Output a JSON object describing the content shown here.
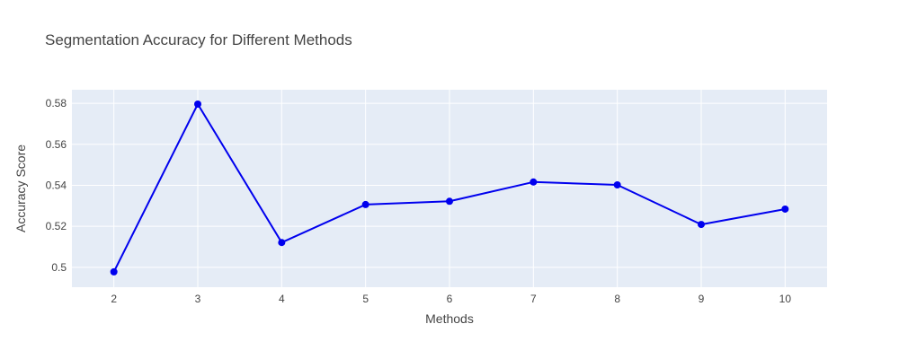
{
  "chart_data": {
    "type": "line",
    "title": "Segmentation Accuracy for Different Methods",
    "xlabel": "Methods",
    "ylabel": "Accuracy Score",
    "x": [
      2,
      3,
      4,
      5,
      6,
      7,
      8,
      9,
      10
    ],
    "series": [
      {
        "values": [
          0.4978,
          0.5796,
          0.5121,
          0.5306,
          0.5322,
          0.5416,
          0.5402,
          0.5209,
          0.5284
        ]
      }
    ],
    "xlim": [
      1.5,
      10.5
    ],
    "ylim": [
      0.4903,
      0.5866
    ],
    "xticks": [
      2,
      3,
      4,
      5,
      6,
      7,
      8,
      9,
      10
    ],
    "xtick_labels": [
      "2",
      "3",
      "4",
      "5",
      "6",
      "7",
      "8",
      "9",
      "10"
    ],
    "yticks": [
      0.5,
      0.52,
      0.54,
      0.56,
      0.58
    ],
    "ytick_labels": [
      "0.5",
      "0.52",
      "0.54",
      "0.56",
      "0.58"
    ],
    "grid": true,
    "colors": {
      "series": "#0000ee",
      "plot_background": "#e5ecf6",
      "grid": "#ffffff",
      "text": "#444444"
    }
  }
}
